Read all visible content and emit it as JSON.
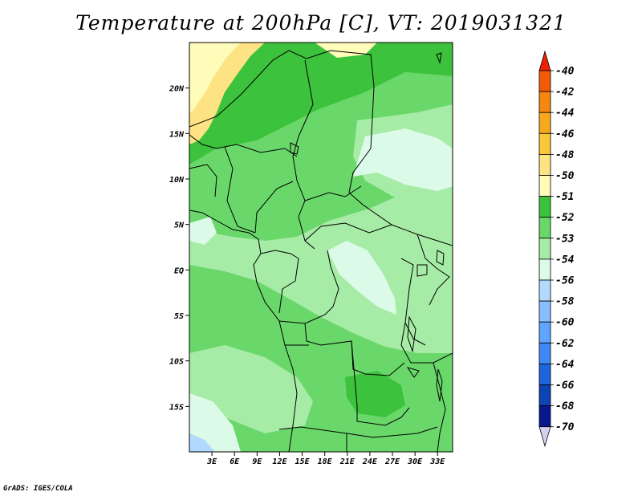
{
  "title": "Temperature at 200hPa [C], VT: 2019031321",
  "credit": "GrADS: IGES/COLA",
  "map": {
    "variable": "Temperature",
    "level": "200hPa",
    "unit": "C",
    "valid_time": "2019031321",
    "lon_ticks": [
      "3E",
      "6E",
      "9E",
      "12E",
      "15E",
      "18E",
      "21E",
      "24E",
      "27E",
      "30E",
      "33E"
    ],
    "lat_ticks": [
      "20N",
      "15N",
      "10N",
      "5N",
      "EQ",
      "5S",
      "10S",
      "15S"
    ],
    "lon_range": [
      0,
      35
    ],
    "lat_range": [
      -20,
      25
    ]
  },
  "colorbar": {
    "labels": [
      "-40",
      "-42",
      "-44",
      "-46",
      "-48",
      "-50",
      "-51",
      "-52",
      "-53",
      "-54",
      "-56",
      "-58",
      "-60",
      "-62",
      "-64",
      "-66",
      "-68",
      "-70"
    ],
    "colors": [
      "#ee2200",
      "#f25a08",
      "#f5870f",
      "#f8a91b",
      "#fbc73a",
      "#fde383",
      "#fffbb8",
      "#3cc23c",
      "#6ad76a",
      "#a6eca6",
      "#dcfae8",
      "#b2daff",
      "#88bfff",
      "#60a5ff",
      "#3d88f2",
      "#1d65dc",
      "#0c44b4",
      "#0a178c",
      "#d5d0f2"
    ]
  },
  "colors": {
    "border": "#000000",
    "background": "#ffffff"
  }
}
